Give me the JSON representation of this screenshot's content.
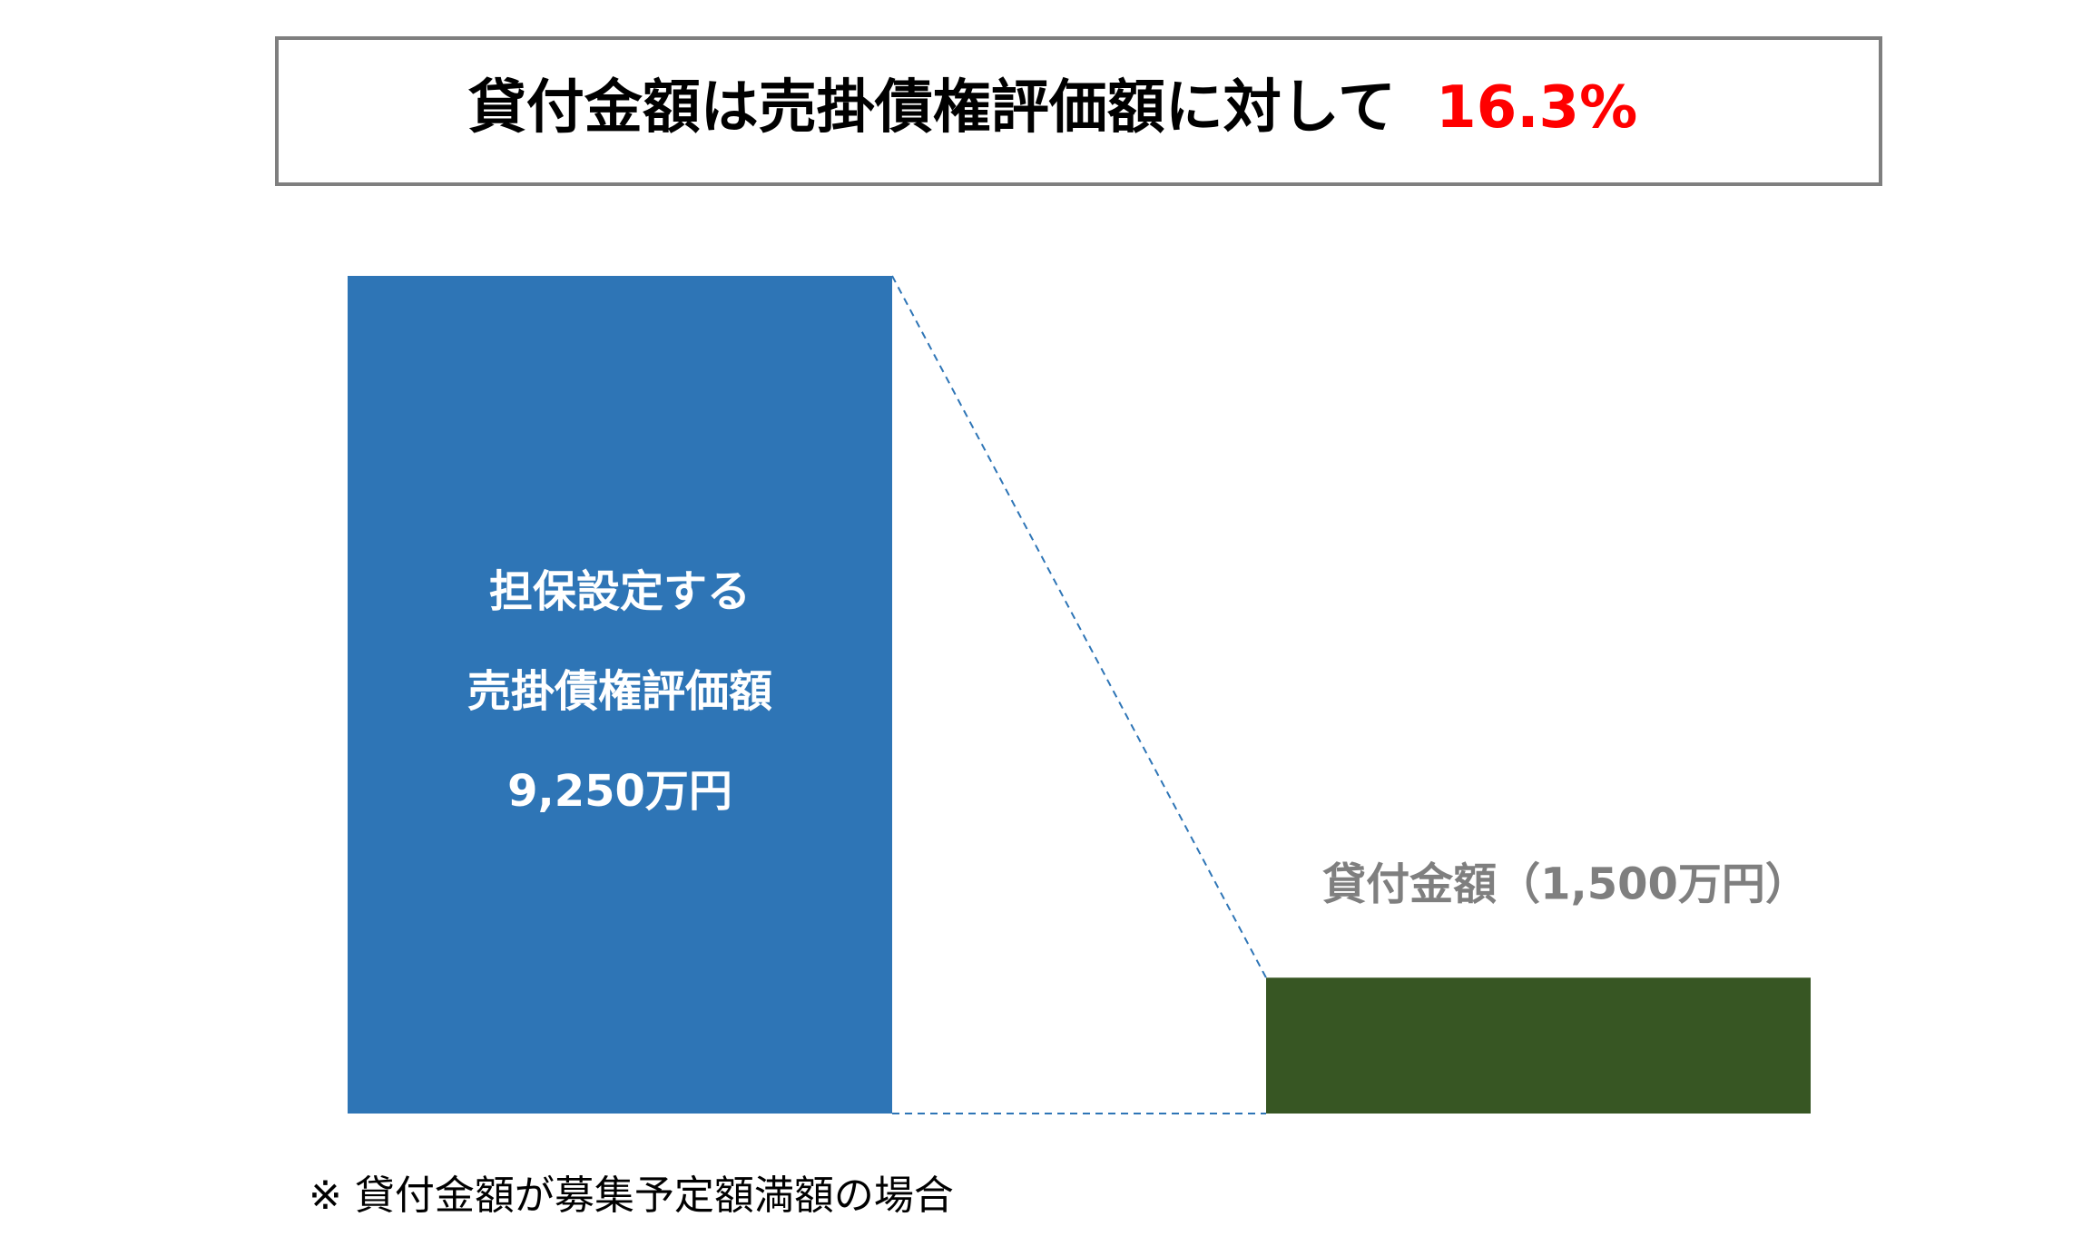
{
  "chart_data": {
    "type": "bar",
    "title": "貸付金額は売掛債権評価額に対して",
    "title_highlight": "16.3%",
    "categories": [
      [
        "担保設定する",
        "売掛債権評価額"
      ],
      [
        "貸付金額"
      ]
    ],
    "values": [
      9250,
      1500
    ],
    "value_labels": [
      "9,250万円",
      "（1,500万円）"
    ],
    "colors": [
      "#2e75b6",
      "#375623"
    ],
    "highlight_color": "#ff0000",
    "footnote": "※ 貸付金額が募集予定額満額の場合"
  }
}
